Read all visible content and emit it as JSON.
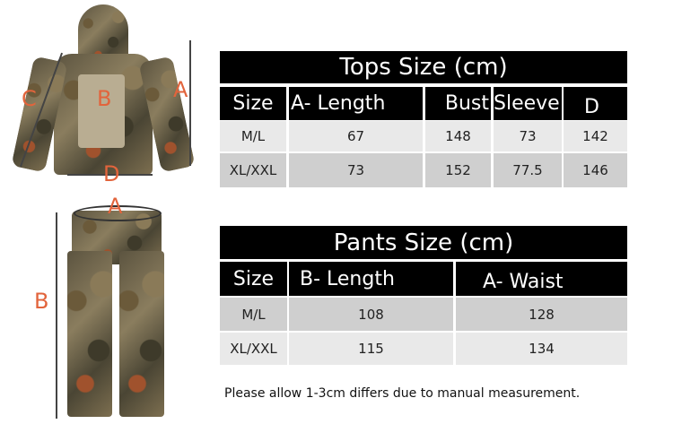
{
  "diagram_labels": {
    "tops": {
      "a": "A",
      "b": "B",
      "c": "C",
      "d": "D"
    },
    "pants": {
      "a": "A",
      "b": "B"
    }
  },
  "tops_table": {
    "title": "Tops Size (cm)",
    "headers": [
      "Size",
      "A- Length",
      "Bust",
      "Sleeve",
      "D"
    ],
    "rows": [
      [
        "M/L",
        "67",
        "148",
        "73",
        "142"
      ],
      [
        "XL/XXL",
        "73",
        "152",
        "77.5",
        "146"
      ]
    ]
  },
  "pants_table": {
    "title": "Pants Size (cm)",
    "headers": [
      "Size",
      "B- Length",
      "A- Waist"
    ],
    "rows": [
      [
        "M/L",
        "108",
        "128"
      ],
      [
        "XL/XXL",
        "115",
        "134"
      ]
    ]
  },
  "note": "Please allow 1-3cm differs due to manual measurement.",
  "colors": {
    "label": "#e2643c",
    "header_bg": "#000000",
    "row_light": "#e9e9e9",
    "row_dark": "#cfcfcf"
  }
}
